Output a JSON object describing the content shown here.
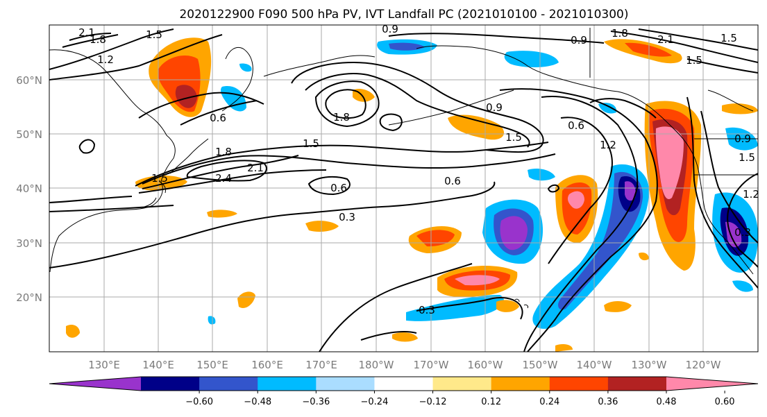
{
  "title": "2020122900 F090 500 hPa PV, IVT Landfall PC (2021010100 - 2021010300)",
  "lat_labels": [
    "60°N",
    "50°N",
    "40°N",
    "30°N",
    "20°N"
  ],
  "lon_labels": [
    "130°E",
    "140°E",
    "150°E",
    "160°E",
    "170°E",
    "180°W",
    "170°W",
    "160°W",
    "150°W",
    "140°W",
    "130°W",
    "120°W"
  ],
  "colorbar": {
    "colors": [
      "#9933cc",
      "#000088",
      "#3355cc",
      "#00bbff",
      "#aaddff",
      "#ffffff",
      "#ffe98a",
      "#ffa500",
      "#ff4500",
      "#b22222",
      "#ff88aa"
    ],
    "tick_labels": [
      "−0.60",
      "−0.48",
      "−0.36",
      "−0.24",
      "−0.12",
      "0.12",
      "0.24",
      "0.36",
      "0.48",
      "0.60"
    ]
  },
  "contour_labels": [
    "2.1",
    "1.8",
    "1.5",
    "1.2",
    "0.9",
    "0.6",
    "1.8",
    "0.9",
    "0.9",
    "1.5",
    "1.5",
    "1.8",
    "2.1",
    "1.5",
    "1.5",
    "0.6",
    "1.8",
    "2.4",
    "2.1",
    "1.5",
    "0.6",
    "0.6",
    "0.3",
    "0.9",
    "1.2",
    "0.3",
    "0.3",
    "1.5",
    "1.2"
  ]
}
